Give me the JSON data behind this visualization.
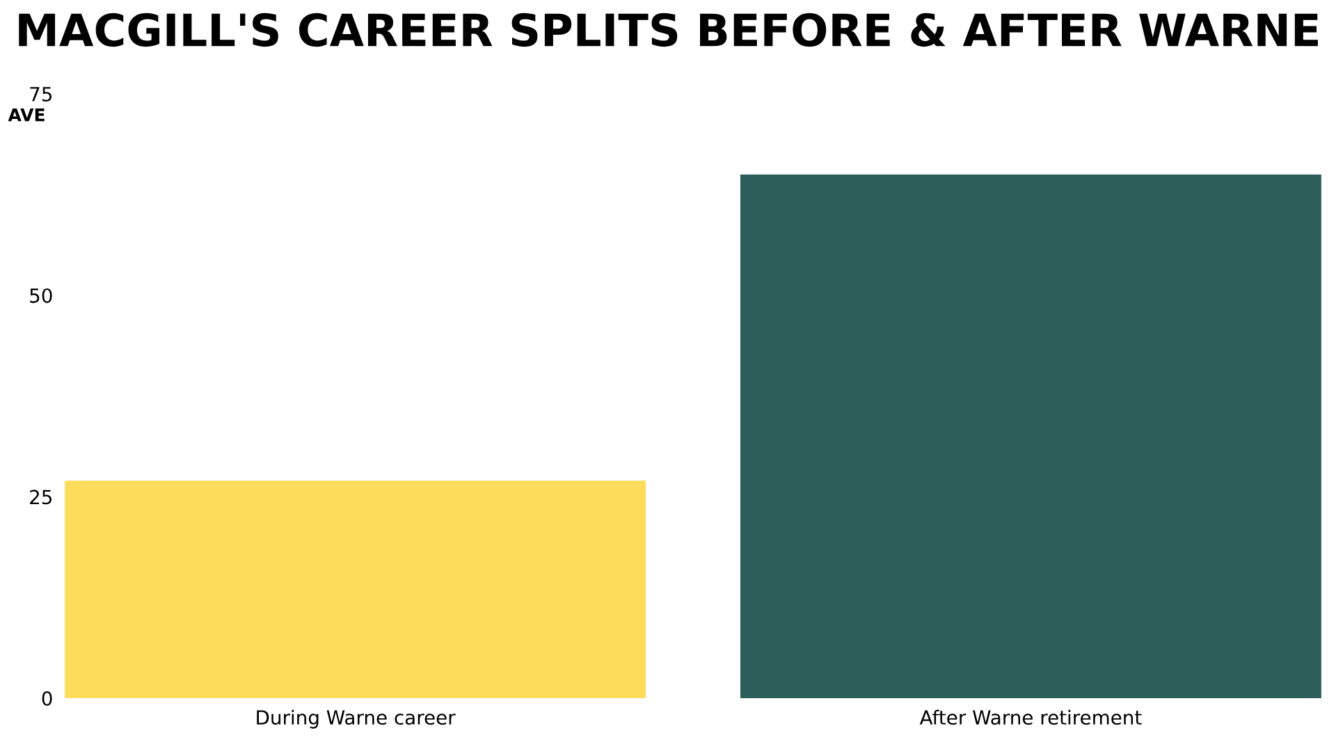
{
  "chart_data": {
    "type": "bar",
    "title": "MACGILL'S CAREER SPLITS BEFORE & AFTER WARNE",
    "ylabel": "AVE",
    "categories": [
      "During Warne career",
      "After Warne retirement"
    ],
    "values": [
      27,
      65
    ],
    "colors": [
      "#fddc5c",
      "#2e5e5a"
    ],
    "ylim": [
      0,
      75
    ],
    "yticks": [
      0,
      25,
      50,
      75
    ],
    "grid": false,
    "legend": false
  }
}
